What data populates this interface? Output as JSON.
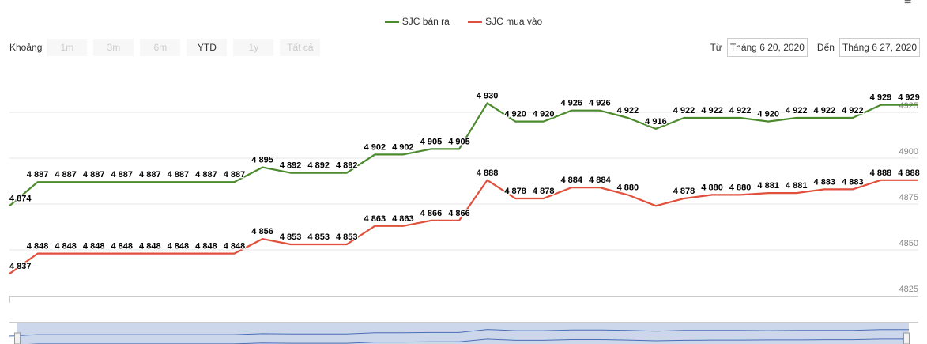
{
  "menu_icon": "hamburger-menu-icon",
  "legend": [
    {
      "label": "SJC bán ra",
      "color": "#4c8a2e"
    },
    {
      "label": "SJC mua vào",
      "color": "#e0503c"
    }
  ],
  "range_selector": {
    "label": "Khoảng",
    "buttons": [
      "1m",
      "3m",
      "6m",
      "YTD",
      "1y",
      "Tất cả"
    ],
    "active": "YTD"
  },
  "date_range": {
    "from_label": "Từ",
    "from": "Tháng 6 20, 2020",
    "to_label": "Đến",
    "to": "Tháng 6 27, 2020"
  },
  "chart_data": {
    "type": "line",
    "ylim": [
      4825,
      4935
    ],
    "y_ticks": [
      "4825",
      "4850",
      "4875",
      "4900",
      "4925"
    ],
    "grid": true,
    "legend_position": "top",
    "series": [
      {
        "name": "SJC bán ra",
        "color": "#4c8a2e",
        "values": [
          4874,
          4887,
          4887,
          4887,
          4887,
          4887,
          4887,
          4887,
          4887,
          4895,
          4892,
          4892,
          4892,
          4902,
          4902,
          4905,
          4905,
          4930,
          4920,
          4920,
          4926,
          4926,
          4922,
          4916,
          4922,
          4922,
          4922,
          4920,
          4922,
          4922,
          4922,
          4929,
          4929
        ],
        "labels": [
          "4 874",
          "4 887",
          "4 887",
          "4 887",
          "4 887",
          "4 887",
          "4 887",
          "4 887",
          "4 887",
          "4 895",
          "4 892",
          "4 892",
          "4 892",
          "4 902",
          "4 902",
          "4 905",
          "4 905",
          "4 930",
          "4 920",
          "4 920",
          "4 926",
          "4 926",
          "4 922",
          "4 916",
          "4 922",
          "4 922",
          "4 922",
          "4 920",
          "4 922",
          "4 922",
          "4 922",
          "4 929",
          "4 929"
        ]
      },
      {
        "name": "SJC mua vào",
        "color": "#e0503c",
        "values": [
          4837,
          4848,
          4848,
          4848,
          4848,
          4848,
          4848,
          4848,
          4848,
          4856,
          4853,
          4853,
          4853,
          4863,
          4863,
          4866,
          4866,
          4888,
          4878,
          4878,
          4884,
          4884,
          4880,
          4874,
          4878,
          4880,
          4880,
          4881,
          4881,
          4883,
          4883,
          4888,
          4888
        ],
        "labels": [
          "4 837",
          "4 848",
          "4 848",
          "4 848",
          "4 848",
          "4 848",
          "4 848",
          "4 848",
          "4 848",
          "4 856",
          "4 853",
          "4 853",
          "4 853",
          "4 863",
          "4 863",
          "4 866",
          "4 866",
          "4 888",
          "4 878",
          "4 878",
          "4 884",
          "4 884",
          "4 880",
          null,
          "4 878",
          "4 880",
          "4 880",
          "4 881",
          "4 881",
          "4 883",
          "4 883",
          "4 888",
          "4 888"
        ]
      }
    ]
  }
}
